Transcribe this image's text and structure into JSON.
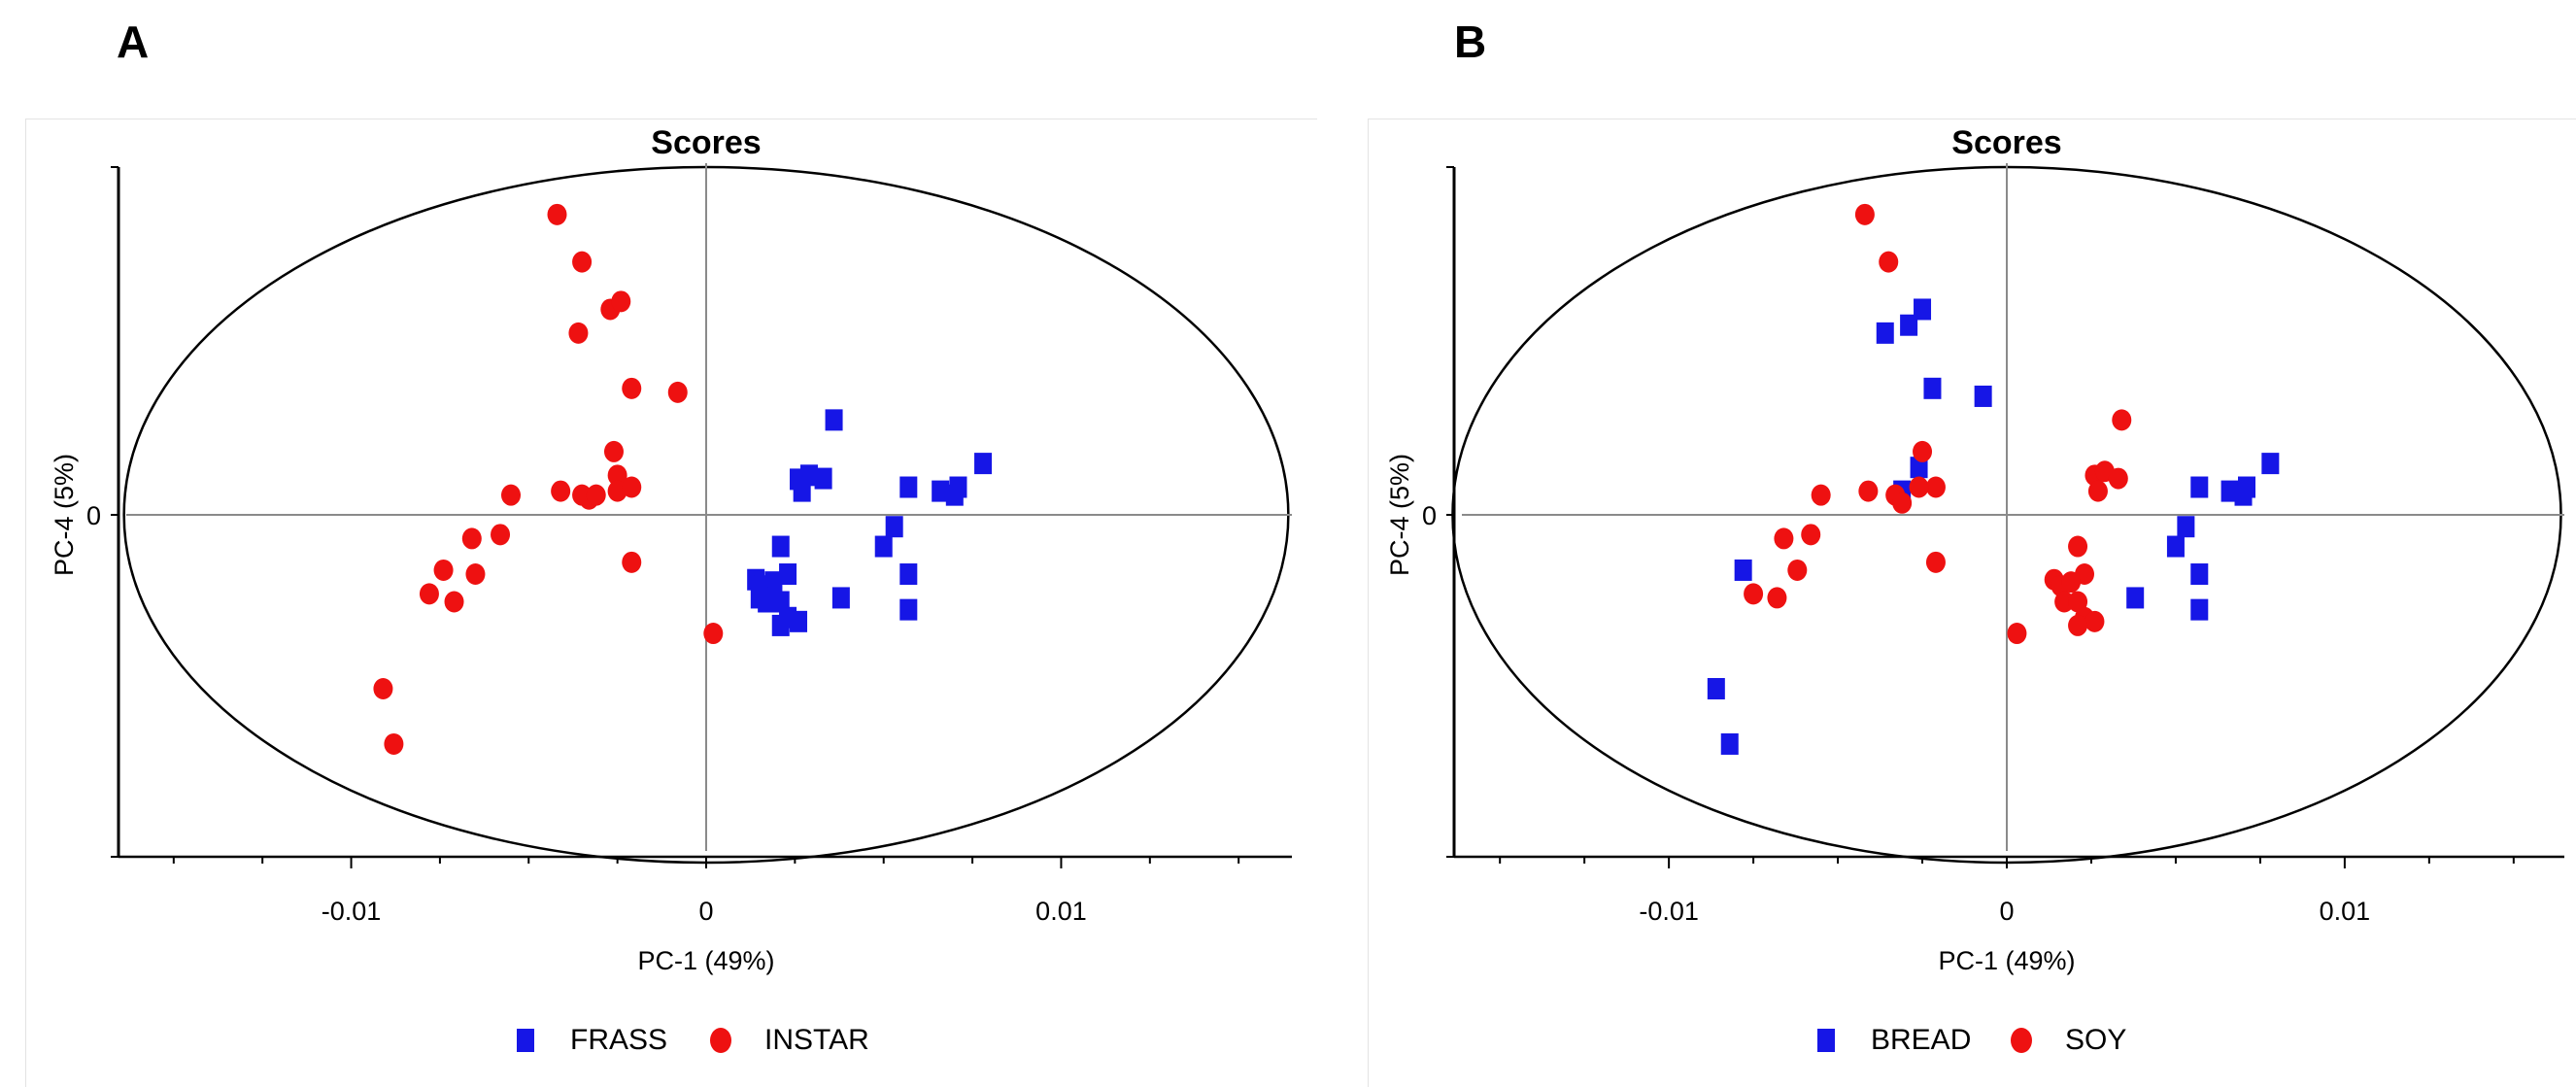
{
  "colors": {
    "square_series": "#1616e6",
    "circle_series": "#ee1111",
    "axis": "#000000",
    "ellipse": "#000000"
  },
  "chart_data": [
    {
      "panel_label": "A",
      "type": "scatter",
      "title": "Scores",
      "xlabel": "PC-1 (49%)",
      "ylabel": "PC-4 (5%)",
      "xlim": [
        -0.0165,
        0.0165
      ],
      "ylim": [
        -0.0044,
        0.0044
      ],
      "xticks": [
        -0.01,
        0,
        0.01
      ],
      "xtick_labels": [
        "-0.01",
        "0",
        "0.01"
      ],
      "yticks": [
        0
      ],
      "ytick_labels": [
        "0"
      ],
      "ellipse": {
        "cx": 0,
        "cy": 0,
        "rx": 0.0164,
        "ry": 0.0044
      },
      "legend_position": "bottom-center",
      "series": [
        {
          "name": "FRASS",
          "marker": "square",
          "color": "#1616e6",
          "points": [
            [
              0.0036,
              0.0012
            ],
            [
              0.0026,
              0.00045
            ],
            [
              0.0029,
              0.0005
            ],
            [
              0.0033,
              0.00046
            ],
            [
              0.0027,
              0.0003
            ],
            [
              0.0057,
              0.00035
            ],
            [
              0.0066,
              0.0003
            ],
            [
              0.0071,
              0.00035
            ],
            [
              0.007,
              0.00025
            ],
            [
              0.0078,
              0.00065
            ],
            [
              0.0053,
              -0.00015
            ],
            [
              0.005,
              -0.0004
            ],
            [
              0.0021,
              -0.0004
            ],
            [
              0.0023,
              -0.00075
            ],
            [
              0.0014,
              -0.00082
            ],
            [
              0.0016,
              -0.0009
            ],
            [
              0.0019,
              -0.00085
            ],
            [
              0.0017,
              -0.0011
            ],
            [
              0.0015,
              -0.00105
            ],
            [
              0.0021,
              -0.0011
            ],
            [
              0.0023,
              -0.0013
            ],
            [
              0.0026,
              -0.00135
            ],
            [
              0.0021,
              -0.0014
            ],
            [
              0.0038,
              -0.00105
            ],
            [
              0.0057,
              -0.00075
            ],
            [
              0.0057,
              -0.0012
            ]
          ]
        },
        {
          "name": "INSTAR",
          "marker": "circle",
          "color": "#ee1111",
          "points": [
            [
              -0.0042,
              0.0038
            ],
            [
              -0.0035,
              0.0032
            ],
            [
              -0.0027,
              0.0026
            ],
            [
              -0.0024,
              0.0027
            ],
            [
              -0.0036,
              0.0023
            ],
            [
              -0.0021,
              0.0016
            ],
            [
              -0.0008,
              0.00155
            ],
            [
              -0.0026,
              0.0008
            ],
            [
              -0.0025,
              0.0005
            ],
            [
              -0.0025,
              0.0003
            ],
            [
              -0.0021,
              0.00035
            ],
            [
              -0.0041,
              0.0003
            ],
            [
              -0.0035,
              0.00025
            ],
            [
              -0.0033,
              0.0002
            ],
            [
              -0.0031,
              0.00025
            ],
            [
              -0.0055,
              0.00025
            ],
            [
              -0.0058,
              -0.00025
            ],
            [
              -0.0066,
              -0.0003
            ],
            [
              -0.0021,
              -0.0006
            ],
            [
              -0.0074,
              -0.0007
            ],
            [
              -0.0065,
              -0.00075
            ],
            [
              -0.0078,
              -0.001
            ],
            [
              -0.0071,
              -0.0011
            ],
            [
              0.0002,
              -0.0015
            ],
            [
              -0.0091,
              -0.0022
            ],
            [
              -0.0088,
              -0.0029
            ]
          ]
        }
      ]
    },
    {
      "panel_label": "B",
      "type": "scatter",
      "title": "Scores",
      "xlabel": "PC-1 (49%)",
      "ylabel": "PC-4 (5%)",
      "xlim": [
        -0.0165,
        0.0165
      ],
      "ylim": [
        -0.0044,
        0.0044
      ],
      "xticks": [
        -0.01,
        0,
        0.01
      ],
      "xtick_labels": [
        "-0.01",
        "0",
        "0.01"
      ],
      "yticks": [
        0
      ],
      "ytick_labels": [
        "0"
      ],
      "ellipse": {
        "cx": 0,
        "cy": 0,
        "rx": 0.0164,
        "ry": 0.0044
      },
      "legend_position": "bottom-center",
      "series": [
        {
          "name": "BREAD",
          "marker": "square",
          "color": "#1616e6",
          "points": [
            [
              -0.0036,
              0.0023
            ],
            [
              -0.0029,
              0.0024
            ],
            [
              -0.0025,
              0.0026
            ],
            [
              -0.0022,
              0.0016
            ],
            [
              -0.0007,
              0.0015
            ],
            [
              -0.0026,
              0.0006
            ],
            [
              -0.0031,
              0.0003
            ],
            [
              0.0057,
              0.00035
            ],
            [
              0.0066,
              0.0003
            ],
            [
              0.0071,
              0.00035
            ],
            [
              0.007,
              0.00025
            ],
            [
              0.0078,
              0.00065
            ],
            [
              0.0053,
              -0.00015
            ],
            [
              0.005,
              -0.0004
            ],
            [
              0.0057,
              -0.00075
            ],
            [
              0.0057,
              -0.0012
            ],
            [
              0.0038,
              -0.00105
            ],
            [
              -0.0078,
              -0.0007
            ],
            [
              -0.0086,
              -0.0022
            ],
            [
              -0.0082,
              -0.0029
            ]
          ]
        },
        {
          "name": "SOY",
          "marker": "circle",
          "color": "#ee1111",
          "points": [
            [
              -0.0042,
              0.0038
            ],
            [
              -0.0035,
              0.0032
            ],
            [
              -0.0025,
              0.0008
            ],
            [
              -0.0021,
              0.00035
            ],
            [
              -0.0026,
              0.00035
            ],
            [
              -0.0041,
              0.0003
            ],
            [
              -0.0033,
              0.00025
            ],
            [
              -0.0031,
              0.00015
            ],
            [
              -0.0055,
              0.00025
            ],
            [
              -0.0058,
              -0.00025
            ],
            [
              -0.0066,
              -0.0003
            ],
            [
              -0.0021,
              -0.0006
            ],
            [
              -0.0062,
              -0.0007
            ],
            [
              -0.0075,
              -0.001
            ],
            [
              -0.0068,
              -0.00105
            ],
            [
              0.0034,
              0.0012
            ],
            [
              0.0026,
              0.0005
            ],
            [
              0.0029,
              0.00055
            ],
            [
              0.0033,
              0.00046
            ],
            [
              0.0027,
              0.0003
            ],
            [
              0.0021,
              -0.0004
            ],
            [
              0.0023,
              -0.00075
            ],
            [
              0.0014,
              -0.00082
            ],
            [
              0.0016,
              -0.0009
            ],
            [
              0.0019,
              -0.00085
            ],
            [
              0.0017,
              -0.0011
            ],
            [
              0.0021,
              -0.0011
            ],
            [
              0.0023,
              -0.0013
            ],
            [
              0.0026,
              -0.00135
            ],
            [
              0.0021,
              -0.0014
            ],
            [
              0.0003,
              -0.0015
            ]
          ]
        }
      ]
    }
  ]
}
